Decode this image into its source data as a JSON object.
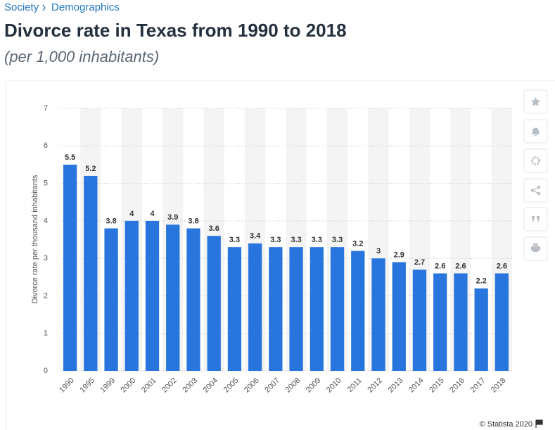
{
  "breadcrumb": [
    "Society",
    "Demographics"
  ],
  "credit": "© Statista 2020",
  "chart_data": {
    "type": "bar",
    "title": "Divorce rate in Texas from 1990 to 2018",
    "subtitle": "(per 1,000 inhabitants)",
    "y_label": "Divorce rate per thousand inhabitants",
    "categories": [
      "1990",
      "1995",
      "1999",
      "2000",
      "2001",
      "2002",
      "2003",
      "2004",
      "2005",
      "2006",
      "2007",
      "2008",
      "2009",
      "2010",
      "2011",
      "2012",
      "2013",
      "2014",
      "2015",
      "2016",
      "2017",
      "2018"
    ],
    "values": [
      5.5,
      5.2,
      3.8,
      4,
      4,
      3.9,
      3.8,
      3.6,
      3.3,
      3.4,
      3.3,
      3.3,
      3.3,
      3.3,
      3.2,
      3,
      2.9,
      2.7,
      2.6,
      2.6,
      2.2,
      2.6
    ],
    "color": "#2876dd",
    "ylim": [
      0,
      7
    ],
    "yticks": [
      0,
      1,
      2,
      3,
      4,
      5,
      6,
      7
    ],
    "grid": true
  }
}
